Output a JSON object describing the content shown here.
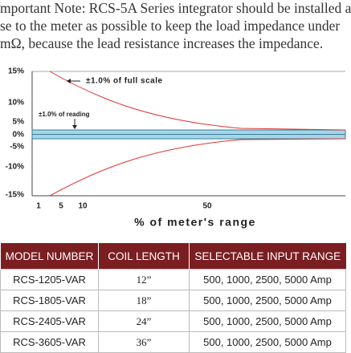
{
  "note": {
    "lines": [
      "mportant Note: RCS-5A Series integrator should be installed a",
      "se to the meter as possible to keep the load impedance under",
      "mΩ, because the lead resistance increases the impedance."
    ]
  },
  "figure": {
    "y_labels": [
      "15%",
      "10%",
      "5%",
      "0%",
      "-5%",
      "-10%",
      "-15%"
    ],
    "x_labels": [
      "1",
      "5",
      "10",
      "50"
    ],
    "x_axis_label": "% of meter's range",
    "annotations": {
      "full_scale": "±1.0% of full scale",
      "reading": "±1.0% of reading"
    }
  },
  "table": {
    "header": [
      "MODEL NUMBER",
      "COIL LENGTH",
      "SELECTABLE INPUT RANGE"
    ],
    "rows": [
      [
        "RCS-1205-VAR",
        "12”",
        "500, 1000, 2500, 5000 Amp"
      ],
      [
        "RCS-1805-VAR",
        "18”",
        "500, 1000, 2500, 5000 Amp"
      ],
      [
        "RCS-2405-VAR",
        "24”",
        "500, 1000, 2500, 5000 Amp"
      ],
      [
        "RCS-3605-VAR",
        "36”",
        "500, 1000, 2500, 5000 Amp"
      ]
    ]
  }
}
